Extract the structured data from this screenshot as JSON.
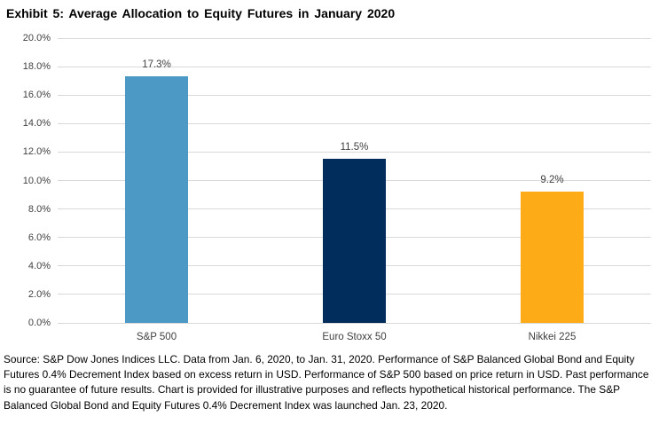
{
  "title": "Exhibit 5: Average Allocation to Equity Futures in January 2020",
  "chart_data": {
    "type": "bar",
    "title": "Exhibit 5: Average Allocation to Equity Futures in January 2020",
    "categories": [
      "S&P 500",
      "Euro Stoxx 50",
      "Nikkei 225"
    ],
    "values": [
      17.3,
      11.5,
      9.2
    ],
    "value_labels": [
      "17.3%",
      "11.5%",
      "9.2%"
    ],
    "bar_colors": [
      "#4d99c5",
      "#002d5c",
      "#fdac18"
    ],
    "xlabel": "",
    "ylabel": "",
    "ylim": [
      0,
      20
    ],
    "ytick_step": 2,
    "ytick_labels": [
      "0.0%",
      "2.0%",
      "4.0%",
      "6.0%",
      "8.0%",
      "10.0%",
      "12.0%",
      "14.0%",
      "16.0%",
      "18.0%",
      "20.0%"
    ],
    "grid": true,
    "legend": false
  },
  "colors": {
    "grid": "#d9d9d9",
    "title_text": "#000000",
    "tick_text": "#3f3f3f",
    "value_label_text": "#404040",
    "background": "#ffffff"
  },
  "footer": {
    "source_text": "Source: S&P Dow Jones Indices LLC. Data from Jan. 6, 2020, to Jan. 31, 2020. Performance of S&P Balanced Global Bond and Equity Futures 0.4% Decrement Index based on excess return in USD. Performance of S&P 500 based on price return in USD. Past performance is no guarantee of future results. Chart is provided for illustrative purposes and reflects hypothetical historical performance. The S&P Balanced Global Bond and Equity Futures 0.4% Decrement Index was launched Jan. 23, 2020."
  }
}
